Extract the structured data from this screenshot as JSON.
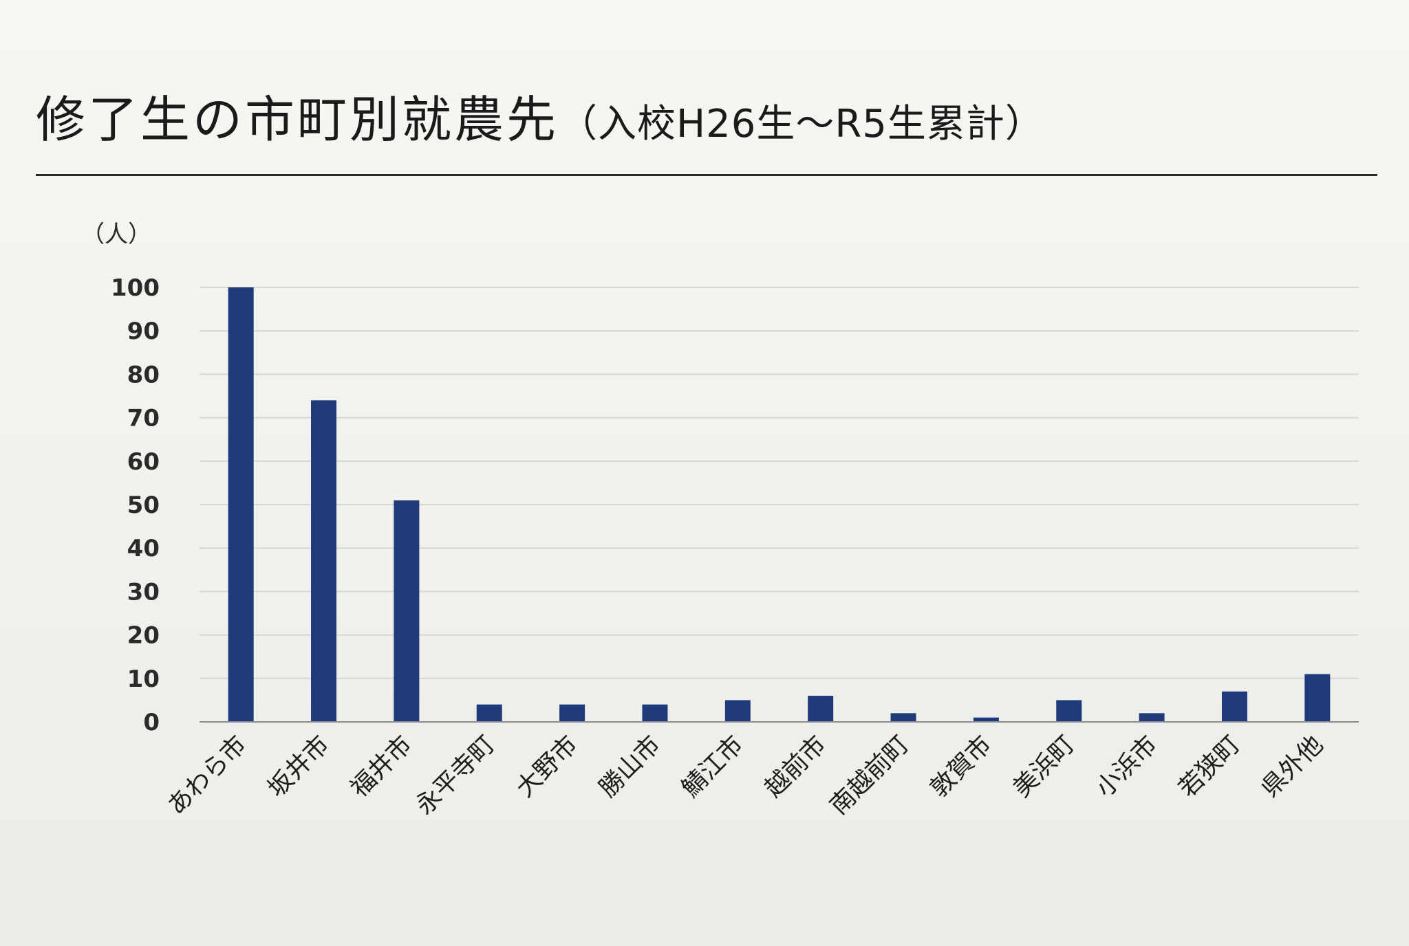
{
  "title": {
    "main": "修了生の市町別就農先",
    "sub": "（入校H26生～R5生累計）"
  },
  "colors": {
    "bar": "#1f3a7a",
    "grid": "#d6d6d6",
    "axis": "#8a8a8a",
    "background": "#f3f3ef"
  },
  "chart_data": {
    "type": "bar",
    "title": "修了生の市町別就農先（入校H26生～R5生累計）",
    "ylabel": "（人）",
    "xlabel": "",
    "ylim": [
      0,
      100
    ],
    "yticks": [
      0,
      10,
      20,
      30,
      40,
      50,
      60,
      70,
      80,
      90,
      100
    ],
    "grid": true,
    "legend": "none",
    "categories": [
      "あわら市",
      "坂井市",
      "福井市",
      "永平寺町",
      "大野市",
      "勝山市",
      "鯖江市",
      "越前市",
      "南越前町",
      "敦賀市",
      "美浜町",
      "小浜市",
      "若狭町",
      "県外他"
    ],
    "values": [
      100,
      74,
      51,
      4,
      4,
      4,
      5,
      6,
      2,
      1,
      5,
      2,
      7,
      11
    ]
  }
}
